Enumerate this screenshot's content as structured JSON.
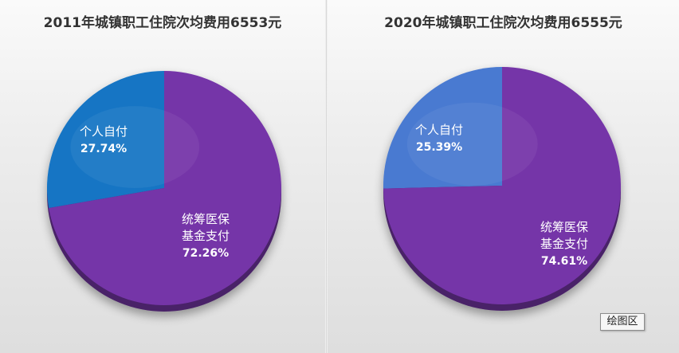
{
  "chart_data": [
    {
      "type": "pie",
      "title": "2011年城镇职工住院次均费用6553元",
      "slices": [
        {
          "label_lines": [
            "个人自付"
          ],
          "value": 27.74,
          "value_label": "27.74%",
          "color": "#1474c4"
        },
        {
          "label_lines": [
            "统筹医保",
            "基金支付"
          ],
          "value": 72.26,
          "value_label": "72.26%",
          "color": "#7535a8"
        }
      ]
    },
    {
      "type": "pie",
      "title": "2020年城镇职工住院次均费用6555元",
      "slices": [
        {
          "label_lines": [
            "个人自付"
          ],
          "value": 25.39,
          "value_label": "25.39%",
          "color": "#4a7ad1"
        },
        {
          "label_lines": [
            "统筹医保",
            "基金支付"
          ],
          "value": 74.61,
          "value_label": "74.61%",
          "color": "#7535a8"
        }
      ]
    }
  ],
  "plot_area_label": "绘图区"
}
